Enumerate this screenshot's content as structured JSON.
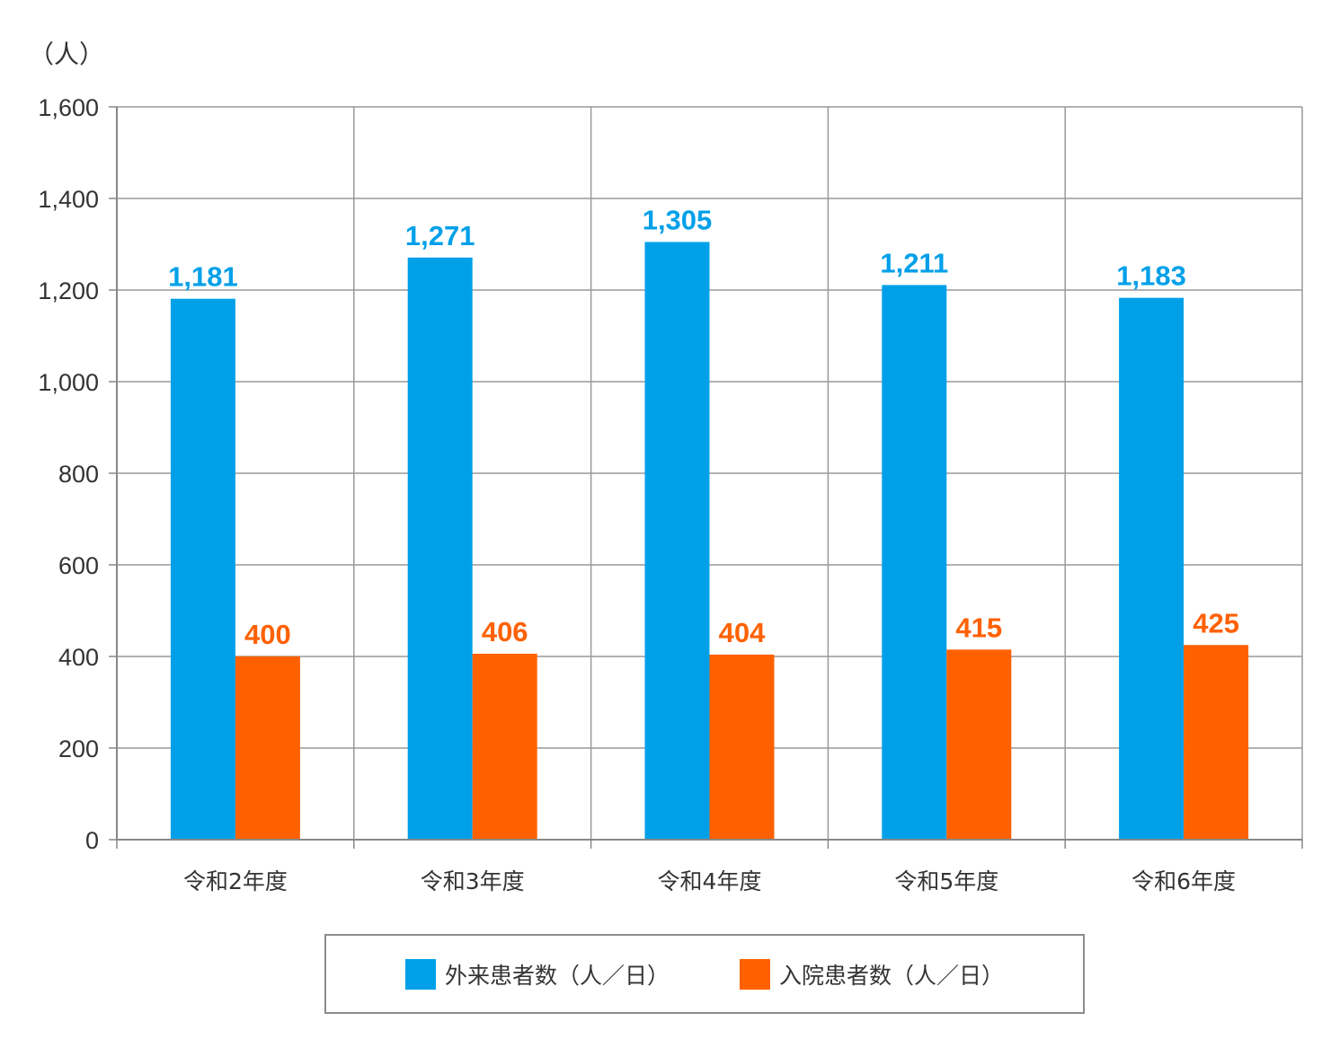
{
  "chart_data": {
    "type": "bar",
    "title": "",
    "xlabel": "",
    "ylabel": "（人）",
    "ylim": [
      0,
      1600
    ],
    "yticks": [
      0,
      200,
      400,
      600,
      800,
      1000,
      1200,
      1400,
      1600
    ],
    "ytick_labels": [
      "0",
      "200",
      "400",
      "600",
      "800",
      "1,000",
      "1,200",
      "1,400",
      "1,600"
    ],
    "grid": true,
    "legend_position": "bottom-center",
    "categories": [
      "令和2年度",
      "令和3年度",
      "令和4年度",
      "令和5年度",
      "令和6年度"
    ],
    "series": [
      {
        "name": "外来患者数（人／日）",
        "color": "#00a0e9",
        "values": [
          1181,
          1271,
          1305,
          1211,
          1183
        ],
        "value_labels": [
          "1,181",
          "1,271",
          "1,305",
          "1,211",
          "1,183"
        ]
      },
      {
        "name": "入院患者数（人／日）",
        "color": "#ff6100",
        "values": [
          400,
          406,
          404,
          415,
          425
        ],
        "value_labels": [
          "400",
          "406",
          "404",
          "415",
          "425"
        ]
      }
    ]
  }
}
